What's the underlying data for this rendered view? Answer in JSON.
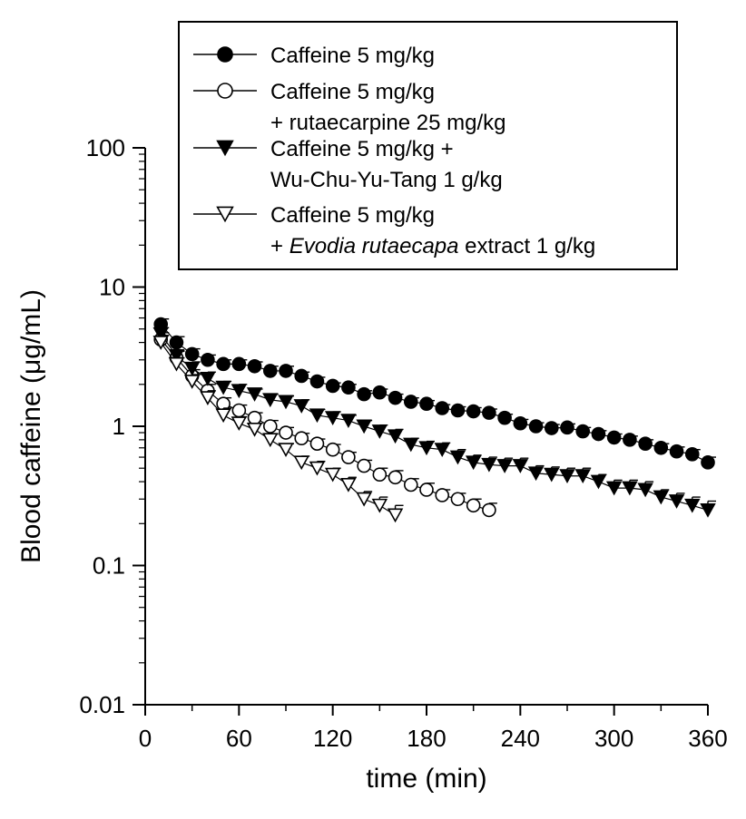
{
  "chart_data": {
    "type": "scatter",
    "xlabel": "time (min)",
    "ylabel": "Blood caffeine (μg/mL)",
    "x_scale": "linear",
    "y_scale": "log",
    "xlim": [
      0,
      360
    ],
    "ylim": [
      0.01,
      100
    ],
    "x_ticks": [
      "0",
      "60",
      "120",
      "180",
      "240",
      "300",
      "360"
    ],
    "x_tick_values": [
      0,
      60,
      120,
      180,
      240,
      300,
      360
    ],
    "y_ticks": [
      "0.01",
      "0.1",
      "1",
      "10",
      "100"
    ],
    "y_tick_values": [
      0.01,
      0.1,
      1,
      10,
      100
    ],
    "legend_position": "top-right",
    "legend": [
      {
        "lines": [
          "Caffeine 5 mg/kg"
        ]
      },
      {
        "lines": [
          "Caffeine 5 mg/kg",
          "+ rutaecarpine 25 mg/kg"
        ]
      },
      {
        "lines": [
          "Caffeine 5 mg/kg +",
          "Wu-Chu-Yu-Tang 1 g/kg"
        ]
      },
      {
        "lines": [
          "Caffeine 5 mg/kg",
          "+ |Evodia rutaecapa| extract 1 g/kg"
        ]
      }
    ],
    "series": [
      {
        "marker": "filled-circle",
        "x": [
          10,
          20,
          30,
          40,
          50,
          60,
          70,
          80,
          90,
          100,
          110,
          120,
          130,
          140,
          150,
          160,
          170,
          180,
          190,
          200,
          210,
          220,
          230,
          240,
          250,
          260,
          270,
          280,
          290,
          300,
          310,
          320,
          330,
          340,
          350,
          360
        ],
        "y": [
          5.4,
          4.0,
          3.3,
          3.0,
          2.8,
          2.8,
          2.7,
          2.5,
          2.5,
          2.3,
          2.1,
          1.95,
          1.9,
          1.7,
          1.75,
          1.6,
          1.5,
          1.45,
          1.35,
          1.3,
          1.28,
          1.25,
          1.15,
          1.05,
          1.0,
          0.97,
          0.98,
          0.92,
          0.88,
          0.83,
          0.8,
          0.75,
          0.7,
          0.66,
          0.63,
          0.55
        ],
        "err": [
          0.5,
          0.4,
          0.3,
          0.25,
          0.2,
          0.2,
          0.2,
          0.2,
          0.2,
          0.15,
          0.15,
          0.1,
          0.1,
          0.1,
          0.1,
          0.1,
          0.1,
          0.08,
          0.08,
          0.08,
          0.08,
          0.08,
          0.07,
          0.07,
          0.06,
          0.06,
          0.06,
          0.06,
          0.05,
          0.05,
          0.05,
          0.05,
          0.05,
          0.05,
          0.05,
          0.05
        ]
      },
      {
        "marker": "open-circle",
        "x": [
          10,
          20,
          30,
          40,
          50,
          60,
          70,
          80,
          90,
          100,
          110,
          120,
          130,
          140,
          150,
          160,
          170,
          180,
          190,
          200,
          210,
          220
        ],
        "y": [
          4.2,
          3.1,
          2.3,
          1.8,
          1.45,
          1.3,
          1.15,
          1.0,
          0.9,
          0.82,
          0.75,
          0.68,
          0.6,
          0.52,
          0.45,
          0.43,
          0.38,
          0.35,
          0.32,
          0.3,
          0.27,
          0.25
        ],
        "err": [
          0.5,
          0.35,
          0.25,
          0.2,
          0.15,
          0.12,
          0.1,
          0.1,
          0.08,
          0.07,
          0.06,
          0.06,
          0.05,
          0.05,
          0.05,
          0.05,
          0.04,
          0.04,
          0.03,
          0.03,
          0.03,
          0.03
        ]
      },
      {
        "marker": "filled-triangle-down",
        "x": [
          10,
          20,
          30,
          40,
          50,
          60,
          70,
          80,
          90,
          100,
          110,
          120,
          130,
          140,
          150,
          160,
          170,
          180,
          190,
          200,
          210,
          220,
          230,
          240,
          250,
          260,
          270,
          280,
          290,
          300,
          310,
          320,
          330,
          340,
          350,
          360
        ],
        "y": [
          4.6,
          3.2,
          2.6,
          2.2,
          1.9,
          1.8,
          1.7,
          1.55,
          1.5,
          1.4,
          1.2,
          1.15,
          1.1,
          1.0,
          0.92,
          0.85,
          0.74,
          0.7,
          0.68,
          0.6,
          0.55,
          0.53,
          0.52,
          0.52,
          0.46,
          0.45,
          0.44,
          0.44,
          0.4,
          0.36,
          0.36,
          0.35,
          0.31,
          0.29,
          0.27,
          0.25
        ],
        "err": [
          0.5,
          0.3,
          0.3,
          0.25,
          0.2,
          0.2,
          0.15,
          0.15,
          0.15,
          0.15,
          0.12,
          0.12,
          0.1,
          0.1,
          0.1,
          0.1,
          0.08,
          0.08,
          0.08,
          0.08,
          0.07,
          0.07,
          0.07,
          0.07,
          0.06,
          0.06,
          0.06,
          0.06,
          0.05,
          0.05,
          0.05,
          0.05,
          0.04,
          0.04,
          0.04,
          0.04
        ]
      },
      {
        "marker": "open-triangle-down",
        "x": [
          10,
          20,
          30,
          40,
          50,
          60,
          70,
          80,
          90,
          100,
          110,
          120,
          130,
          140,
          150,
          160
        ],
        "y": [
          4.0,
          2.8,
          2.1,
          1.6,
          1.2,
          1.05,
          0.95,
          0.8,
          0.68,
          0.55,
          0.5,
          0.45,
          0.38,
          0.3,
          0.27,
          0.23
        ],
        "err": [
          0.5,
          0.3,
          0.25,
          0.2,
          0.15,
          0.12,
          0.1,
          0.08,
          0.07,
          0.06,
          0.06,
          0.05,
          0.05,
          0.04,
          0.04,
          0.04
        ]
      }
    ]
  }
}
